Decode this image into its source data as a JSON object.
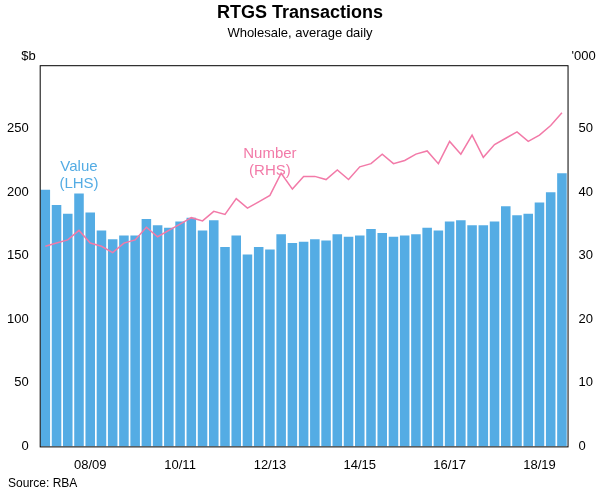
{
  "chart_data": {
    "type": "bar",
    "title": "RTGS Transactions",
    "subtitle": "Wholesale, average daily",
    "ylabel": "$b",
    "y2label": "'000",
    "source": "Source: RBA",
    "categories": [
      null,
      null,
      null,
      null,
      "08/09",
      null,
      null,
      null,
      null,
      null,
      null,
      null,
      "10/11",
      null,
      null,
      null,
      null,
      null,
      null,
      null,
      "12/13",
      null,
      null,
      null,
      null,
      null,
      null,
      null,
      "14/15",
      null,
      null,
      null,
      null,
      null,
      null,
      null,
      "16/17",
      null,
      null,
      null,
      null,
      null,
      null,
      null,
      "18/19",
      null,
      null
    ],
    "series": [
      {
        "name": "Value (LHS)",
        "type": "bar",
        "color": "#54ace4",
        "axis": "y",
        "values": [
          202,
          190,
          183,
          199,
          184,
          170,
          163,
          166,
          166,
          179,
          174,
          172,
          177,
          180,
          170,
          178,
          157,
          166,
          151,
          157,
          155,
          167,
          160,
          161,
          163,
          162,
          167,
          165,
          166,
          171,
          168,
          165,
          166,
          167,
          172,
          170,
          177,
          178,
          174,
          174,
          177,
          189,
          182,
          183,
          192,
          200,
          215
        ]
      },
      {
        "name": "Number (RHS)",
        "type": "line",
        "color": "#f27aa8",
        "axis": "y2",
        "values": [
          31.5,
          32,
          32.5,
          34,
          32,
          31.5,
          30.5,
          32,
          32.5,
          34.5,
          33,
          34,
          35,
          36,
          35.5,
          37,
          36.5,
          39,
          37.5,
          38.5,
          39.5,
          43,
          40.5,
          42.5,
          42.5,
          42,
          43.5,
          42,
          44,
          44.5,
          46,
          44.5,
          45,
          46,
          46.5,
          44.5,
          48,
          46,
          49,
          45.5,
          47.5,
          48.5,
          49.5,
          48,
          49,
          50.5,
          52.5
        ]
      }
    ],
    "ylim": [
      0,
      300
    ],
    "yticks": [
      0,
      50,
      100,
      150,
      200,
      250
    ],
    "y2lim": [
      0,
      60
    ],
    "y2ticks": [
      0,
      10,
      20,
      30,
      40,
      50
    ],
    "grid": false
  }
}
